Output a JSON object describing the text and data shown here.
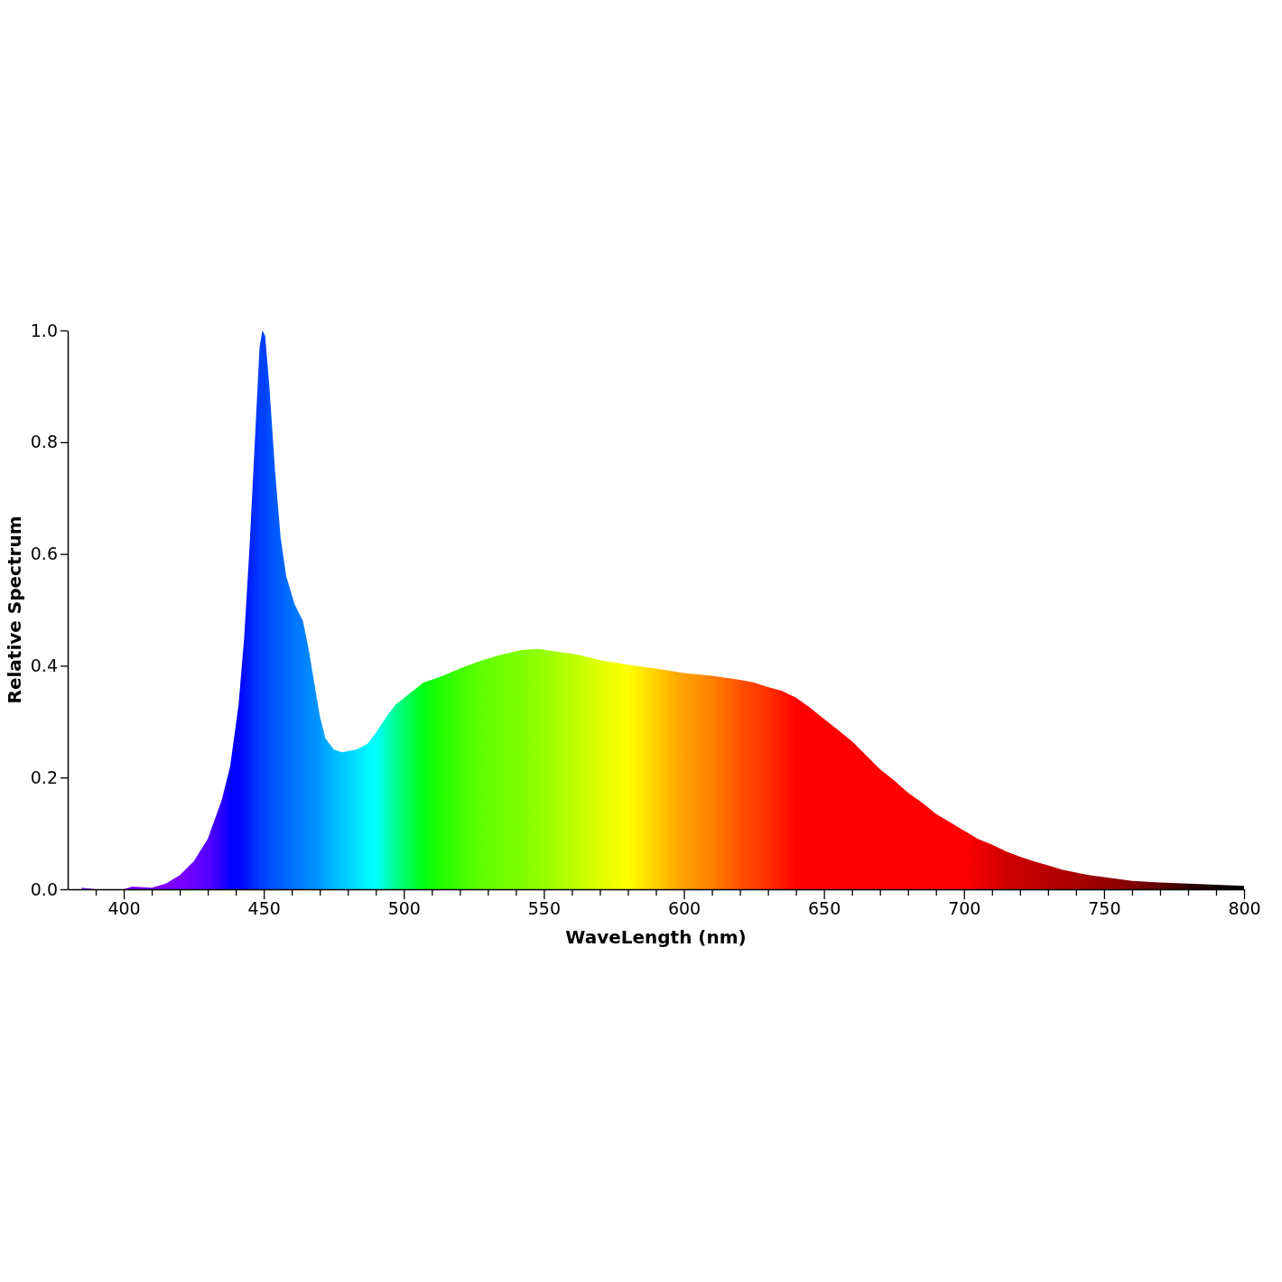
{
  "chart_data": {
    "type": "area",
    "xlabel": "WaveLength (nm)",
    "ylabel": "Relative Spectrum",
    "xlim": [
      380,
      800
    ],
    "ylim": [
      0,
      1
    ],
    "xticks": [
      {
        "value": 390,
        "label": null
      },
      400,
      {
        "value": 410,
        "label": null
      },
      {
        "value": 420,
        "label": null
      },
      {
        "value": 430,
        "label": null
      },
      {
        "value": 440,
        "label": null
      },
      450,
      {
        "value": 460,
        "label": null
      },
      {
        "value": 470,
        "label": null
      },
      {
        "value": 480,
        "label": null
      },
      {
        "value": 490,
        "label": null
      },
      500,
      {
        "value": 510,
        "label": null
      },
      {
        "value": 520,
        "label": null
      },
      {
        "value": 530,
        "label": null
      },
      {
        "value": 540,
        "label": null
      },
      550,
      {
        "value": 560,
        "label": null
      },
      {
        "value": 570,
        "label": null
      },
      {
        "value": 580,
        "label": null
      },
      {
        "value": 590,
        "label": null
      },
      600,
      {
        "value": 610,
        "label": null
      },
      {
        "value": 620,
        "label": null
      },
      {
        "value": 630,
        "label": null
      },
      {
        "value": 640,
        "label": null
      },
      650,
      {
        "value": 660,
        "label": null
      },
      {
        "value": 670,
        "label": null
      },
      {
        "value": 680,
        "label": null
      },
      {
        "value": 690,
        "label": null
      },
      700,
      {
        "value": 710,
        "label": null
      },
      {
        "value": 720,
        "label": null
      },
      {
        "value": 730,
        "label": null
      },
      {
        "value": 740,
        "label": null
      },
      750,
      {
        "value": 760,
        "label": null
      },
      {
        "value": 770,
        "label": null
      },
      {
        "value": 780,
        "label": null
      },
      {
        "value": 790,
        "label": null
      },
      800
    ],
    "yticks": [
      {
        "value": 0,
        "label": "0.0"
      },
      0.2,
      0.4,
      0.6,
      0.8,
      {
        "value": 1,
        "label": "1.0"
      }
    ],
    "grid": false,
    "x": [
      385,
      390,
      400,
      403,
      410,
      415,
      420,
      425,
      430,
      435,
      438,
      441,
      443,
      445,
      447,
      448.5,
      449.5,
      450.5,
      452,
      454,
      456,
      458,
      461,
      464,
      466,
      468,
      470,
      472,
      475,
      478,
      483,
      487,
      490,
      494,
      497,
      502,
      507,
      513,
      520,
      528,
      535,
      542,
      548,
      555,
      562,
      570,
      580,
      590,
      600,
      610,
      620,
      625,
      630,
      635,
      640,
      645,
      650,
      655,
      660,
      665,
      670,
      675,
      680,
      685,
      690,
      695,
      700,
      705,
      710,
      715,
      720,
      725,
      730,
      735,
      740,
      745,
      750,
      760,
      770,
      780,
      790,
      800
    ],
    "series": [
      {
        "values": [
          0.003,
          0,
          0,
          0.005,
          0.003,
          0.01,
          0.025,
          0.05,
          0.09,
          0.16,
          0.22,
          0.33,
          0.45,
          0.62,
          0.82,
          0.97,
          1.0,
          0.99,
          0.9,
          0.75,
          0.63,
          0.56,
          0.51,
          0.48,
          0.43,
          0.37,
          0.31,
          0.27,
          0.25,
          0.245,
          0.25,
          0.26,
          0.28,
          0.31,
          0.33,
          0.35,
          0.37,
          0.38,
          0.395,
          0.41,
          0.42,
          0.428,
          0.43,
          0.425,
          0.42,
          0.41,
          0.402,
          0.395,
          0.387,
          0.382,
          0.375,
          0.37,
          0.362,
          0.355,
          0.343,
          0.325,
          0.305,
          0.285,
          0.265,
          0.24,
          0.215,
          0.195,
          0.173,
          0.155,
          0.135,
          0.12,
          0.105,
          0.09,
          0.08,
          0.068,
          0.058,
          0.05,
          0.043,
          0.035,
          0.03,
          0.025,
          0.022,
          0.015,
          0.012,
          0.01,
          0.008,
          0.006
        ],
        "colors": [
          "#7f00ff",
          "#7f00ff",
          "#7f00ff",
          "#7f00ff",
          "#7f00ff",
          "#7f00ff",
          "#7a00ff",
          "#6a00ff",
          "#5500ff",
          "#2a00ff",
          "#0000ff",
          "#0000ff",
          "#0010ff",
          "#0020ff",
          "#0030ff",
          "#0040ff",
          "#0040ff",
          "#0040ff",
          "#0050ff",
          "#0058ff",
          "#0060ff",
          "#0068ff",
          "#0075ff",
          "#0080ff",
          "#0088ff",
          "#0090ff",
          "#0098ff",
          "#00a8ff",
          "#00b8ff",
          "#00c8ff",
          "#00e0ff",
          "#00f8ff",
          "#00ffff",
          "#00ffc0",
          "#00ff90",
          "#00ff50",
          "#00ff10",
          "#20ff00",
          "#40ff00",
          "#60ff00",
          "#70ff00",
          "#80ff00",
          "#90ff00",
          "#a8ff00",
          "#c0ff00",
          "#e0ff00",
          "#ffff00",
          "#ffd000",
          "#ffa000",
          "#ff8000",
          "#ff5000",
          "#ff4000",
          "#ff3000",
          "#ff1800",
          "#ff0000",
          "#ff0000",
          "#ff0000",
          "#ff0000",
          "#ff0000",
          "#ff0000",
          "#ff0000",
          "#ff0000",
          "#ff0000",
          "#ff0000",
          "#ff0000",
          "#ff0000",
          "#ff0000",
          "#f00000",
          "#e00000",
          "#d00000",
          "#c80000",
          "#c00000",
          "#b80000",
          "#b00000",
          "#a80000",
          "#a00000",
          "#980000",
          "#800000",
          "#600000",
          "#300000",
          "#100000",
          "#000000"
        ]
      }
    ]
  }
}
